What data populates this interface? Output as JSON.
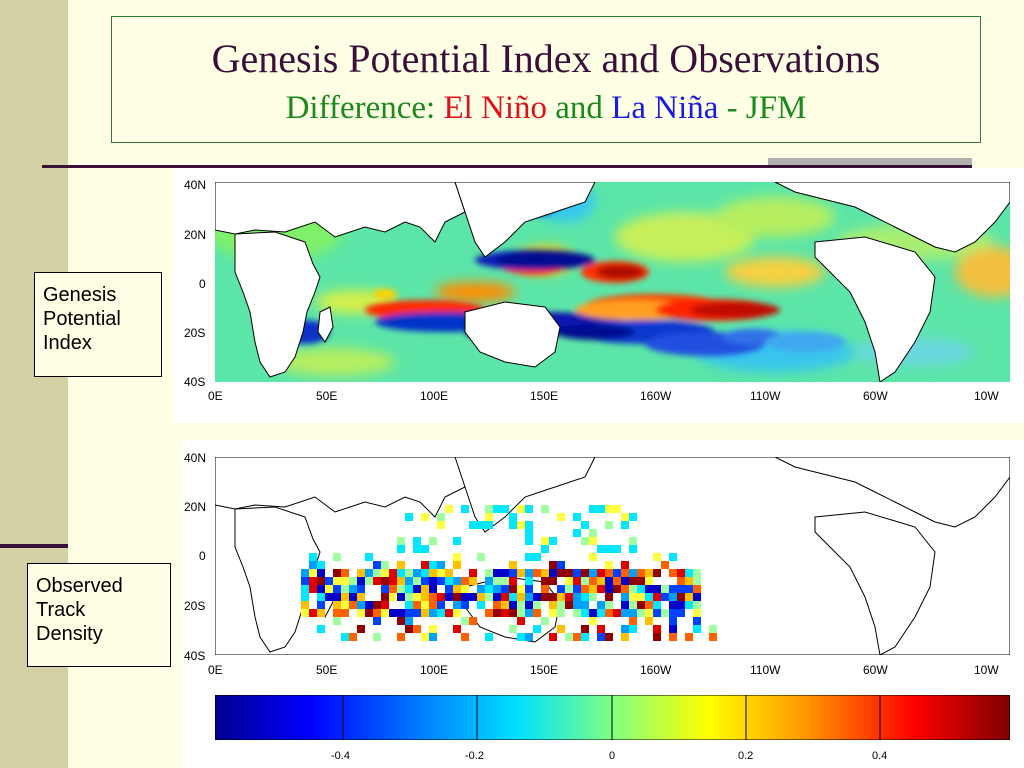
{
  "slide": {
    "title": "Genesis Potential Index and Observations",
    "subtitle": {
      "prefix": "Difference: ",
      "el_nino": "El Niño",
      "and": " and ",
      "la_nina": "La Niña",
      "suffix": " - JFM"
    }
  },
  "labels": {
    "gpi": [
      "Genesis",
      "Potential",
      "Index"
    ],
    "track": [
      "Observed",
      "Track",
      "Density"
    ]
  },
  "map": {
    "lat_ticks": [
      "40N",
      "20N",
      "0",
      "20S",
      "40S"
    ],
    "lon_ticks": [
      "0E",
      "50E",
      "100E",
      "150E",
      "160W",
      "110W",
      "60W",
      "10W"
    ]
  },
  "colorbar": {
    "ticks": [
      "-0.4",
      "-0.2",
      "0",
      "0.2",
      "0.4"
    ]
  },
  "colors": {
    "sidebar": "#d4d0a6",
    "accent": "#3a0f3a",
    "background": "#ffffe6"
  }
}
